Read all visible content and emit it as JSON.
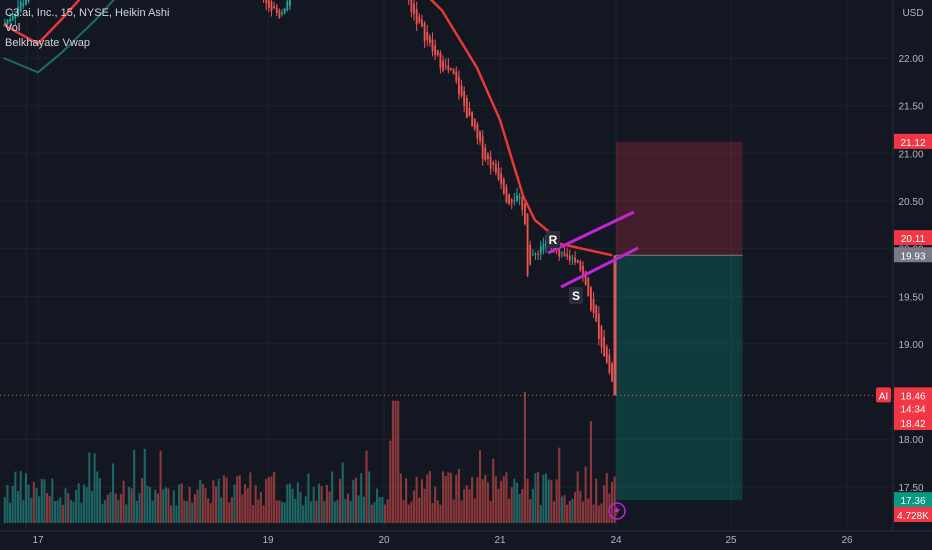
{
  "legend": {
    "symbol_line": "C3.ai, Inc., 15, NYSE, Heikin Ashi",
    "vol_label": "Vol",
    "vwap_label": "Belkhayate Vwap"
  },
  "colors": {
    "background": "#131722",
    "up": "#26a69a",
    "down": "#ef5350",
    "ma_line": "#e53935",
    "vwap_line": "#1f6b5e",
    "channel": "#c026d3",
    "stop_zone": "rgba(242,54,69,0.22)",
    "target_zone": "rgba(8,153,129,0.28)"
  },
  "chart_data": {
    "type": "candlestick",
    "currency_label": "USD",
    "ylim": [
      17.0,
      23.1
    ],
    "y_ticks": [
      "22.00",
      "21.50",
      "21.00",
      "20.50",
      "20.00",
      "19.50",
      "19.00",
      "18.00",
      "17.50"
    ],
    "x_ticks": [
      "17",
      "19",
      "20",
      "21",
      "24",
      "25",
      "26"
    ],
    "grid": true,
    "price_badges": [
      {
        "label": "21.12",
        "value": 21.12,
        "color": "#f23645"
      },
      {
        "label": "20.11",
        "value": 20.11,
        "color": "#f23645"
      },
      {
        "label": "19.93",
        "value": 19.93,
        "color": "#787b86"
      },
      {
        "label": "18.46",
        "value": 18.46,
        "color": "#f23645",
        "prefix": "AI",
        "sub": "14:34"
      },
      {
        "label": "18.42",
        "value": 18.42,
        "color": "#f23645"
      },
      {
        "label": "17.36",
        "value": 17.36,
        "color": "#089981"
      },
      {
        "label": "4.728K",
        "value": 17.13,
        "color": "#f23645"
      }
    ],
    "annotations": [
      {
        "text": "R",
        "x": 21.45,
        "y": 20.11
      },
      {
        "text": "S",
        "x": 21.65,
        "y": 19.49
      }
    ],
    "position": {
      "entry": 19.93,
      "stop": 21.12,
      "target": 17.36,
      "x_start": 24.0,
      "x_end": 25.1
    },
    "last_price": 18.46,
    "candles_ohlc_start_day": 16.7,
    "candles_ohlc_end_day": 24.0,
    "price_path": [
      [
        16.7,
        22.35
      ],
      [
        17.0,
        22.8
      ],
      [
        17.3,
        23.0
      ],
      [
        17.6,
        23.2
      ],
      [
        17.9,
        23.3
      ],
      [
        18.2,
        23.4
      ],
      [
        18.5,
        23.3
      ],
      [
        18.8,
        23.2
      ],
      [
        19.0,
        22.55
      ],
      [
        19.1,
        22.45
      ],
      [
        19.2,
        22.7
      ],
      [
        19.4,
        23.0
      ],
      [
        19.6,
        23.05
      ],
      [
        19.8,
        23.05
      ],
      [
        20.0,
        23.2
      ],
      [
        20.1,
        22.9
      ],
      [
        20.3,
        22.35
      ],
      [
        20.45,
        22.0
      ],
      [
        20.6,
        21.8
      ],
      [
        20.75,
        21.3
      ],
      [
        20.85,
        21.0
      ],
      [
        21.0,
        20.75
      ],
      [
        21.2,
        20.5
      ],
      [
        21.35,
        20.55
      ],
      [
        21.5,
        20.5
      ],
      [
        21.65,
        20.3
      ],
      [
        21.7,
        19.75
      ],
      [
        21.8,
        19.85
      ],
      [
        22.0,
        20.0
      ],
      [
        22.2,
        20.1
      ],
      [
        22.4,
        19.95
      ],
      [
        22.55,
        19.9
      ],
      [
        23.0,
        19.9
      ],
      [
        24.0,
        18.46
      ]
    ],
    "ma_path": [
      [
        16.7,
        22.35
      ],
      [
        17.0,
        22.15
      ],
      [
        17.2,
        22.4
      ],
      [
        17.5,
        22.8
      ],
      [
        18.0,
        23.3
      ],
      [
        19.0,
        23.4
      ],
      [
        19.5,
        23.25
      ],
      [
        20.0,
        23.1
      ],
      [
        20.5,
        22.5
      ],
      [
        20.8,
        21.9
      ],
      [
        21.0,
        21.35
      ],
      [
        21.3,
        20.95
      ],
      [
        21.6,
        20.55
      ],
      [
        21.9,
        20.3
      ],
      [
        22.2,
        20.2
      ],
      [
        22.55,
        20.05
      ]
    ],
    "vwap_path": [
      [
        16.7,
        22.0
      ],
      [
        17.0,
        21.85
      ],
      [
        17.2,
        22.05
      ],
      [
        17.5,
        22.4
      ],
      [
        17.8,
        22.8
      ],
      [
        18.2,
        23.2
      ]
    ],
    "volume_ymax_K": 30
  }
}
